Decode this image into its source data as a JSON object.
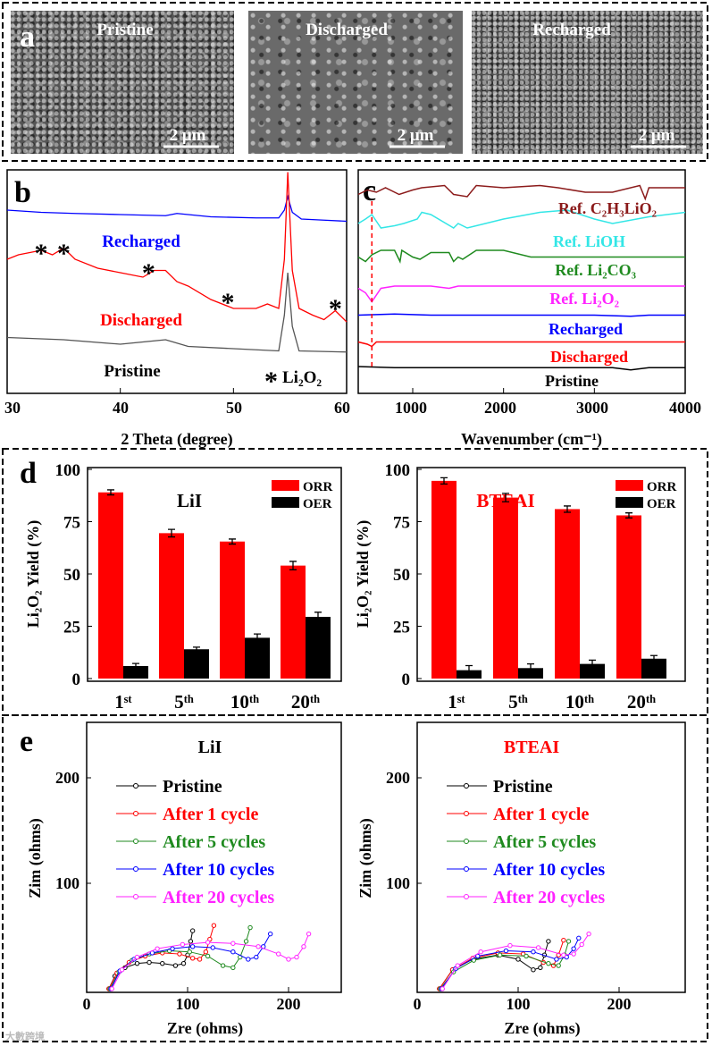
{
  "panel_a": {
    "label": "a",
    "images": [
      {
        "title": "Pristine",
        "scale": "2 μm"
      },
      {
        "title": "Discharged",
        "scale": "2 μm"
      },
      {
        "title": "Recharged",
        "scale": "2 μm"
      }
    ]
  },
  "panel_labels": {
    "b": "b",
    "c": "c",
    "d": "d",
    "e": "e"
  },
  "watermark": "大數跨境",
  "chart_data": [
    {
      "id": "b",
      "type": "line",
      "xlabel": "2 Theta (degree)",
      "ylabel": "",
      "xlim": [
        30,
        60
      ],
      "ylim": [
        0,
        100
      ],
      "xticks": [
        "30",
        "40",
        "50",
        "60"
      ],
      "series": [
        {
          "name": "Recharged",
          "color": "#0000ff",
          "x": [
            30,
            33,
            36,
            40,
            44,
            45,
            48,
            52,
            54,
            54.5,
            54.8,
            55.2,
            56,
            58,
            60
          ],
          "y": [
            82,
            81,
            80.5,
            80,
            79.5,
            80.5,
            79,
            78.5,
            78.5,
            82,
            88,
            81,
            78,
            77.5,
            77
          ]
        },
        {
          "name": "Discharged",
          "color": "#ff0000",
          "x": [
            30,
            31,
            33,
            34,
            35,
            36,
            38,
            40,
            42,
            43,
            44,
            45,
            46,
            48,
            50,
            52,
            53,
            54,
            54.5,
            54.8,
            55.2,
            55.8,
            57,
            58,
            59,
            60
          ],
          "y": [
            60,
            62,
            64,
            62,
            65,
            60,
            56,
            54,
            52,
            55,
            55,
            50,
            48,
            42,
            38,
            38,
            40,
            38,
            60,
            99,
            55,
            38,
            35,
            33,
            37,
            32
          ]
        },
        {
          "name": "Pristine",
          "color": "#555555",
          "x": [
            30,
            35,
            40,
            44,
            46,
            50,
            54,
            54.5,
            54.8,
            55.2,
            55.8,
            60
          ],
          "y": [
            25,
            24,
            22,
            24,
            21,
            20,
            19,
            35,
            54,
            30,
            19,
            18.5
          ]
        }
      ],
      "labels": [
        "Recharged",
        "Discharged",
        "Pristine"
      ],
      "annotations": {
        "star": "*",
        "legend": "Li₂O₂",
        "star_positions": [
          33,
          35,
          42.5,
          49.5,
          59
        ]
      }
    },
    {
      "id": "c",
      "type": "line",
      "xlabel": "Wavenumber (cm⁻¹)",
      "ylabel": "",
      "xlim": [
        400,
        4000
      ],
      "ylim": [
        0,
        100
      ],
      "xticks": [
        "1000",
        "2000",
        "3000",
        "4000"
      ],
      "reference_line": 550,
      "series": [
        {
          "name": "Ref. C₂H₃LiO₂",
          "color": "#8b1a1a",
          "x": [
            400,
            500,
            600,
            700,
            850,
            1000,
            1100,
            1350,
            1450,
            1600,
            1700,
            2000,
            2400,
            2600,
            2900,
            3200,
            3500,
            3560,
            3600,
            4000
          ],
          "y": [
            89,
            91,
            90,
            92,
            89,
            91,
            92,
            93,
            89,
            88,
            93,
            92,
            93,
            92,
            90,
            90,
            93,
            87,
            92,
            92
          ]
        },
        {
          "name": "Ref. LiOH",
          "color": "#33e6e6",
          "x": [
            400,
            480,
            550,
            650,
            800,
            900,
            1050,
            1100,
            1200,
            1450,
            1500,
            1600,
            2000,
            2400,
            2700,
            3000,
            3200,
            3600,
            4000
          ],
          "y": [
            76,
            78,
            80,
            74,
            75,
            76,
            78,
            81,
            80,
            74,
            76,
            74,
            78,
            81,
            82,
            78,
            76,
            79,
            81
          ]
        },
        {
          "name": "Ref. Li₂CO₃",
          "color": "#1f8a1f",
          "x": [
            400,
            480,
            550,
            650,
            800,
            860,
            880,
            1000,
            1080,
            1200,
            1400,
            1450,
            1500,
            1550,
            1700,
            2000,
            2300,
            3000,
            4000
          ],
          "y": [
            61,
            59,
            62,
            64,
            64,
            59,
            64,
            61,
            60,
            63,
            63,
            59,
            61,
            60,
            64,
            64,
            61,
            61,
            61
          ]
        },
        {
          "name": "Ref. Li₂O₂",
          "color": "#ff22ff",
          "x": [
            400,
            480,
            550,
            650,
            800,
            1200,
            1400,
            1500,
            2000,
            3000,
            3600,
            4000
          ],
          "y": [
            47,
            45,
            41,
            47,
            48,
            48,
            47,
            48,
            48,
            48,
            48,
            48
          ]
        },
        {
          "name": "Recharged",
          "color": "#0000ff",
          "x": [
            400,
            800,
            1200,
            2000,
            3000,
            3400,
            3600,
            4000
          ],
          "y": [
            35,
            35.5,
            35,
            35,
            35,
            34.5,
            35,
            35
          ]
        },
        {
          "name": "Discharged",
          "color": "#ff0000",
          "x": [
            400,
            500,
            550,
            600,
            800,
            1200,
            2000,
            3000,
            4000
          ],
          "y": [
            23,
            22,
            21,
            23,
            23,
            23,
            23,
            23,
            23
          ]
        },
        {
          "name": "Pristine",
          "color": "#000000",
          "x": [
            400,
            800,
            1500,
            2500,
            3200,
            3400,
            3600,
            4000
          ],
          "y": [
            12,
            11.5,
            11.5,
            11.5,
            11.5,
            10.5,
            11.5,
            11.5
          ]
        }
      ]
    },
    {
      "id": "d-left",
      "type": "bar",
      "title": "LiI",
      "ylabel": "Li₂O₂ Yield (%)",
      "ylim": [
        0,
        100
      ],
      "yticks": [
        "0",
        "25",
        "50",
        "75",
        "100"
      ],
      "categories": [
        "1ˢᵗ",
        "5ᵗʰ",
        "10ᵗʰ",
        "20ᵗʰ"
      ],
      "series": [
        {
          "name": "ORR",
          "color": "#ff0000",
          "values": [
            89,
            69.5,
            65.5,
            54
          ],
          "errors": [
            1.2,
            1.8,
            1.2,
            2
          ]
        },
        {
          "name": "OER",
          "color": "#000000",
          "values": [
            6,
            14,
            19.5,
            29.5
          ],
          "errors": [
            1.2,
            1,
            1.8,
            2.2
          ]
        }
      ],
      "legend": "top-right"
    },
    {
      "id": "d-right",
      "type": "bar",
      "title": "BTEAI",
      "ylabel": "Li₂O₂ Yield (%)",
      "ylim": [
        0,
        100
      ],
      "yticks": [
        "0",
        "25",
        "50",
        "75",
        "100"
      ],
      "categories": [
        "1ˢᵗ",
        "5ᵗʰ",
        "10ᵗʰ",
        "20ᵗʰ"
      ],
      "series": [
        {
          "name": "ORR",
          "color": "#ff0000",
          "values": [
            94.5,
            86.5,
            81,
            78
          ],
          "errors": [
            1.5,
            2,
            1.5,
            1.2
          ]
        },
        {
          "name": "OER",
          "color": "#000000",
          "values": [
            4,
            5,
            7,
            9.5
          ],
          "errors": [
            2.2,
            2,
            1.8,
            1.5
          ]
        }
      ],
      "legend": "top-right"
    },
    {
      "id": "e-left",
      "type": "scatter",
      "title": "LiI",
      "xlabel": "Zre (ohms)",
      "ylabel": "Zim (ohms)",
      "xticks": [
        "0",
        "100",
        "200"
      ],
      "yticks": [
        "100",
        "200"
      ],
      "xlim": [
        0,
        250
      ],
      "ylim": [
        0,
        250
      ],
      "series": [
        {
          "name": "Pristine",
          "color": "#000000",
          "x": [
            22,
            28,
            38,
            50,
            62,
            75,
            88,
            96,
            100,
            103,
            105
          ],
          "y": [
            0,
            12,
            20,
            24,
            25,
            24,
            22,
            24,
            32,
            45,
            55
          ]
        },
        {
          "name": "After 1  cycle",
          "color": "#ff0000",
          "x": [
            22,
            30,
            42,
            58,
            75,
            92,
            105,
            112,
            118,
            122,
            126
          ],
          "y": [
            0,
            15,
            25,
            31,
            34,
            33,
            29,
            28,
            35,
            47,
            60
          ]
        },
        {
          "name": "After 5 cycles",
          "color": "#1f8a1f",
          "x": [
            23,
            32,
            45,
            62,
            82,
            102,
            120,
            135,
            145,
            152,
            158,
            162
          ],
          "y": [
            0,
            16,
            27,
            33,
            36,
            35,
            31,
            22,
            20,
            30,
            45,
            58
          ]
        },
        {
          "name": "After 10 cycles",
          "color": "#0000ff",
          "x": [
            24,
            33,
            47,
            65,
            85,
            105,
            125,
            145,
            160,
            168,
            175,
            182
          ],
          "y": [
            0,
            17,
            28,
            34,
            38,
            40,
            39,
            35,
            28,
            30,
            40,
            52
          ]
        },
        {
          "name": "After 20 cycles",
          "color": "#ff22ff",
          "x": [
            25,
            35,
            50,
            70,
            95,
            120,
            145,
            170,
            190,
            200,
            208,
            215,
            220
          ],
          "y": [
            0,
            18,
            30,
            38,
            42,
            44,
            43,
            40,
            33,
            28,
            30,
            40,
            52
          ]
        }
      ]
    },
    {
      "id": "e-right",
      "type": "scatter",
      "title": "BTEAI",
      "xlabel": "Zre (ohms)",
      "ylabel": "Zim (ohms)",
      "xticks": [
        "0",
        "100",
        "200"
      ],
      "yticks": [
        "100",
        "200"
      ],
      "xlim": [
        0,
        250
      ],
      "ylim": [
        0,
        250
      ],
      "series": [
        {
          "name": "Pristine",
          "color": "#000000",
          "x": [
            22,
            35,
            55,
            80,
            100,
            115,
            122,
            126,
            130
          ],
          "y": [
            0,
            18,
            28,
            32,
            28,
            18,
            20,
            32,
            45
          ]
        },
        {
          "name": "After 1 cycle",
          "color": "#ff0000",
          "x": [
            22,
            35,
            55,
            80,
            105,
            125,
            135,
            140,
            145
          ],
          "y": [
            0,
            18,
            29,
            34,
            33,
            25,
            22,
            32,
            46
          ]
        },
        {
          "name": "After 5 cycles",
          "color": "#1f8a1f",
          "x": [
            23,
            36,
            56,
            82,
            108,
            130,
            140,
            146,
            150
          ],
          "y": [
            0,
            16,
            27,
            32,
            31,
            24,
            22,
            32,
            45
          ]
        },
        {
          "name": "After 10 cycles",
          "color": "#0000ff",
          "x": [
            24,
            38,
            60,
            88,
            115,
            138,
            148,
            155,
            160
          ],
          "y": [
            0,
            19,
            31,
            36,
            35,
            28,
            30,
            38,
            48
          ]
        },
        {
          "name": "After 20 cycles",
          "color": "#ff22ff",
          "x": [
            25,
            40,
            63,
            92,
            120,
            145,
            155,
            163,
            170
          ],
          "y": [
            0,
            22,
            35,
            41,
            39,
            32,
            33,
            42,
            52
          ]
        }
      ]
    }
  ]
}
